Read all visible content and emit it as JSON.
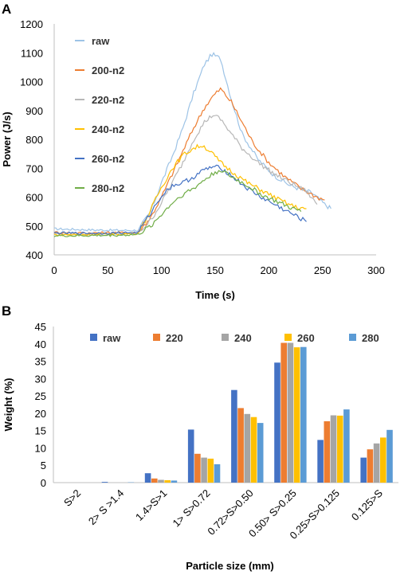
{
  "chart_data": [
    {
      "panel": "A",
      "type": "line",
      "xlabel": "Time (s)",
      "ylabel": "Power (J/s)",
      "xlim": [
        0,
        300
      ],
      "ylim": [
        400,
        1200
      ],
      "xticks": [
        0,
        50,
        100,
        150,
        200,
        250,
        300
      ],
      "yticks": [
        400,
        500,
        600,
        700,
        800,
        900,
        1000,
        1100,
        1200
      ],
      "grid": false,
      "legend_position": "top-left",
      "series": [
        {
          "name": "raw",
          "color": "#9dc3e6",
          "points": [
            [
              0,
              490
            ],
            [
              20,
              488
            ],
            [
              40,
              486
            ],
            [
              60,
              485
            ],
            [
              78,
              485
            ],
            [
              90,
              550
            ],
            [
              100,
              650
            ],
            [
              110,
              740
            ],
            [
              120,
              840
            ],
            [
              130,
              960
            ],
            [
              140,
              1060
            ],
            [
              147,
              1095
            ],
            [
              155,
              1080
            ],
            [
              165,
              940
            ],
            [
              175,
              820
            ],
            [
              190,
              730
            ],
            [
              205,
              675
            ],
            [
              220,
              640
            ],
            [
              240,
              615
            ],
            [
              252,
              575
            ],
            [
              258,
              560
            ]
          ]
        },
        {
          "name": "200-n2",
          "color": "#ed7d31",
          "points": [
            [
              0,
              478
            ],
            [
              20,
              476
            ],
            [
              40,
              476
            ],
            [
              60,
              477
            ],
            [
              78,
              477
            ],
            [
              90,
              530
            ],
            [
              100,
              600
            ],
            [
              110,
              680
            ],
            [
              120,
              760
            ],
            [
              130,
              840
            ],
            [
              140,
              910
            ],
            [
              148,
              950
            ],
            [
              155,
              975
            ],
            [
              165,
              930
            ],
            [
              175,
              860
            ],
            [
              185,
              790
            ],
            [
              200,
              720
            ],
            [
              215,
              670
            ],
            [
              230,
              630
            ],
            [
              245,
              600
            ],
            [
              252,
              590
            ]
          ]
        },
        {
          "name": "220-n2",
          "color": "#b7b7b7",
          "points": [
            [
              0,
              474
            ],
            [
              20,
              472
            ],
            [
              40,
              472
            ],
            [
              60,
              473
            ],
            [
              78,
              474
            ],
            [
              90,
              520
            ],
            [
              100,
              580
            ],
            [
              110,
              650
            ],
            [
              120,
              720
            ],
            [
              130,
              800
            ],
            [
              140,
              860
            ],
            [
              148,
              885
            ],
            [
              155,
              870
            ],
            [
              165,
              820
            ],
            [
              175,
              770
            ],
            [
              190,
              720
            ],
            [
              205,
              680
            ],
            [
              220,
              650
            ],
            [
              235,
              620
            ],
            [
              245,
              575
            ]
          ]
        },
        {
          "name": "240-n2",
          "color": "#ffc000",
          "points": [
            [
              0,
              470
            ],
            [
              20,
              470
            ],
            [
              40,
              471
            ],
            [
              60,
              472
            ],
            [
              78,
              474
            ],
            [
              88,
              540
            ],
            [
              98,
              620
            ],
            [
              110,
              700
            ],
            [
              120,
              745
            ],
            [
              130,
              770
            ],
            [
              138,
              780
            ],
            [
              145,
              760
            ],
            [
              155,
              720
            ],
            [
              165,
              690
            ],
            [
              180,
              650
            ],
            [
              195,
              620
            ],
            [
              210,
              590
            ],
            [
              225,
              565
            ],
            [
              235,
              560
            ]
          ]
        },
        {
          "name": "260-n2",
          "color": "#4472c4",
          "points": [
            [
              0,
              476
            ],
            [
              20,
              475
            ],
            [
              40,
              475
            ],
            [
              60,
              476
            ],
            [
              78,
              477
            ],
            [
              90,
              545
            ],
            [
              100,
              605
            ],
            [
              110,
              640
            ],
            [
              120,
              650
            ],
            [
              130,
              670
            ],
            [
              140,
              695
            ],
            [
              148,
              705
            ],
            [
              156,
              700
            ],
            [
              165,
              675
            ],
            [
              180,
              630
            ],
            [
              195,
              595
            ],
            [
              210,
              565
            ],
            [
              225,
              535
            ],
            [
              235,
              515
            ]
          ]
        },
        {
          "name": "280-n2",
          "color": "#70ad47",
          "points": [
            [
              0,
              466
            ],
            [
              20,
              466
            ],
            [
              40,
              467
            ],
            [
              60,
              468
            ],
            [
              78,
              470
            ],
            [
              90,
              500
            ],
            [
              100,
              540
            ],
            [
              110,
              580
            ],
            [
              120,
              610
            ],
            [
              130,
              630
            ],
            [
              140,
              660
            ],
            [
              150,
              685
            ],
            [
              155,
              695
            ],
            [
              165,
              670
            ],
            [
              180,
              640
            ],
            [
              195,
              605
            ],
            [
              210,
              580
            ],
            [
              222,
              560
            ],
            [
              230,
              550
            ]
          ]
        }
      ]
    },
    {
      "panel": "B",
      "type": "bar",
      "xlabel": "Particle size (mm)",
      "ylabel": "Weight (%)",
      "ylim": [
        0,
        45
      ],
      "yticks": [
        0,
        5,
        10,
        15,
        20,
        25,
        30,
        35,
        40,
        45
      ],
      "grid": false,
      "legend_position": "top",
      "categories": [
        "S>2",
        "2> S >1.4",
        "1.4>S>1",
        "1> S>0.72",
        "0.72>S>0.50",
        "0.50> S>0.25",
        "0.25>S>0.125",
        "0.125>S"
      ],
      "series": [
        {
          "name": "raw",
          "color": "#4472c4",
          "values": [
            0,
            0.2,
            2.7,
            15.3,
            26.7,
            34.6,
            12.3,
            7.2
          ]
        },
        {
          "name": "220",
          "color": "#ed7d31",
          "values": [
            0,
            0,
            1.2,
            8.3,
            21.5,
            40.3,
            17.7,
            9.6
          ]
        },
        {
          "name": "240",
          "color": "#a5a5a5",
          "values": [
            0,
            0,
            0.8,
            7.2,
            19.8,
            40.3,
            19.4,
            11.3
          ]
        },
        {
          "name": "260",
          "color": "#ffc000",
          "values": [
            0,
            0,
            0.7,
            6.9,
            18.9,
            39.0,
            19.3,
            13.0
          ]
        },
        {
          "name": "280",
          "color": "#5b9bd5",
          "values": [
            0,
            0.1,
            0.6,
            5.3,
            17.2,
            39.1,
            21.1,
            15.2
          ]
        }
      ]
    }
  ]
}
